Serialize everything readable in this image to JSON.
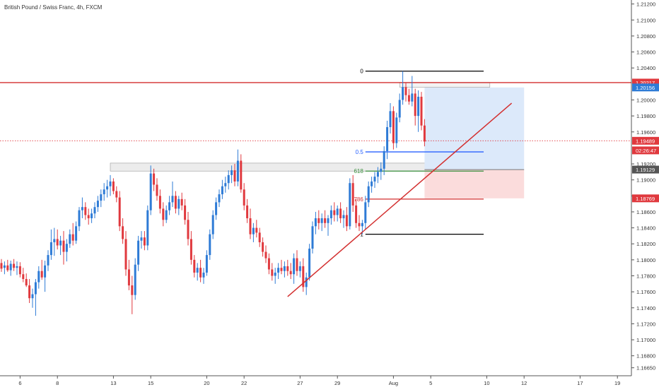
{
  "chart_data": {
    "type": "candlestick",
    "title": "British Pound / Swiss Franc, 4h, FXCM",
    "xlabel": "",
    "ylabel": "",
    "ylim": [
      1.1655,
      1.2125
    ],
    "y_ticks": [
      1.212,
      1.21,
      1.208,
      1.206,
      1.204,
      1.2,
      1.198,
      1.196,
      1.192,
      1.19,
      1.188,
      1.186,
      1.184,
      1.182,
      1.18,
      1.178,
      1.176,
      1.174,
      1.172,
      1.17,
      1.168,
      1.1665
    ],
    "y_tick_labels": [
      "1.21200",
      "1.21000",
      "1.20800",
      "1.20600",
      "1.20400",
      "1.20000",
      "1.19800",
      "1.19600",
      "1.19200",
      "1.19000",
      "1.18800",
      "1.18600",
      "1.18400",
      "1.18200",
      "1.18000",
      "1.17800",
      "1.17600",
      "1.17400",
      "1.17200",
      "1.17000",
      "1.16800",
      "1.16650"
    ],
    "x_ticks": [
      {
        "i": 6,
        "label": "6"
      },
      {
        "i": 18,
        "label": "8"
      },
      {
        "i": 36,
        "label": "13"
      },
      {
        "i": 48,
        "label": "15"
      },
      {
        "i": 66,
        "label": "20"
      },
      {
        "i": 78,
        "label": "22"
      },
      {
        "i": 96,
        "label": "27"
      },
      {
        "i": 108,
        "label": "29"
      },
      {
        "i": 126,
        "label": "Aug"
      },
      {
        "i": 138,
        "label": "5"
      },
      {
        "i": 156,
        "label": "10"
      },
      {
        "i": 168,
        "label": "12"
      },
      {
        "i": 186,
        "label": "17"
      },
      {
        "i": 198,
        "label": "19"
      }
    ],
    "grid": false,
    "legend": "none",
    "colors": {
      "up": "#2e7bd6",
      "down": "#e0393e",
      "resistance": "#d32f2f",
      "trendline": "#d32f2f",
      "fib_zero": "#000000",
      "fib_half": "#2962ff",
      "fib_618": "#388e3c",
      "fib_786": "#d32f2f",
      "fib_one": "#000000",
      "target_zone": "#dce9fa",
      "stop_zone": "#fbdcdc",
      "zone_box": "#ececec"
    },
    "price_labels": [
      {
        "value": 1.20217,
        "text": "1.20217",
        "color": "#e0393e"
      },
      {
        "value": 1.20156,
        "text": "1.20156",
        "color": "#2e7bd6"
      },
      {
        "value": 1.19489,
        "text": "1.19489",
        "color": "#e0393e"
      },
      {
        "value": 1.19369,
        "text": "02:26:47",
        "color": "#e0393e"
      },
      {
        "value": 1.19129,
        "text": "1.19129",
        "color": "#555555"
      },
      {
        "value": 1.18769,
        "text": "1.18769",
        "color": "#e0393e"
      }
    ],
    "fib_levels": [
      {
        "label": "0",
        "value": 1.2036,
        "color": "#000000"
      },
      {
        "label": "0.5",
        "value": 1.1935,
        "color": "#2962ff"
      },
      {
        "label": "618",
        "value": 1.1911,
        "color": "#388e3c"
      },
      {
        "label": "786",
        "value": 1.1876,
        "color": "#d32f2f"
      },
      {
        "label": "1",
        "value": 1.1832,
        "color": "#000000"
      }
    ],
    "fib_range": {
      "i0": 117,
      "i1": 155
    },
    "resistance_line": 1.20217,
    "current_price_line": 1.19489,
    "zone_box": {
      "i0": 35,
      "i1": 149,
      "top": 1.1921,
      "bottom": 1.1911
    },
    "top_box": {
      "i0": 128,
      "i1": 157,
      "top": 1.2022,
      "bottom": 1.2016
    },
    "position": {
      "i0": 136,
      "i1": 168,
      "entry": 1.19129,
      "target": 1.20156,
      "stop": 1.18769
    },
    "trendline": {
      "i0": 92,
      "v0": 1.1754,
      "i1": 164,
      "v1": 1.1996
    },
    "candles": [
      [
        0,
        1.1796,
        1.1801,
        1.1785,
        1.1789
      ],
      [
        1,
        1.179,
        1.1798,
        1.1782,
        1.1793
      ],
      [
        2,
        1.1793,
        1.18,
        1.1785,
        1.1787
      ],
      [
        3,
        1.1787,
        1.1799,
        1.178,
        1.1795
      ],
      [
        4,
        1.1795,
        1.1801,
        1.1786,
        1.179
      ],
      [
        5,
        1.179,
        1.1798,
        1.1781,
        1.1792
      ],
      [
        6,
        1.1792,
        1.1797,
        1.1778,
        1.1782
      ],
      [
        7,
        1.1782,
        1.179,
        1.1772,
        1.1776
      ],
      [
        8,
        1.1776,
        1.1783,
        1.1766,
        1.1768
      ],
      [
        9,
        1.1768,
        1.1776,
        1.1746,
        1.1752
      ],
      [
        10,
        1.1752,
        1.1764,
        1.174,
        1.1757
      ],
      [
        11,
        1.1757,
        1.1776,
        1.173,
        1.1772
      ],
      [
        12,
        1.1772,
        1.1792,
        1.1764,
        1.1786
      ],
      [
        13,
        1.1786,
        1.18,
        1.1775,
        1.1778
      ],
      [
        14,
        1.1778,
        1.1799,
        1.176,
        1.1793
      ],
      [
        15,
        1.1793,
        1.1812,
        1.1786,
        1.1806
      ],
      [
        16,
        1.1806,
        1.1838,
        1.18,
        1.1822
      ],
      [
        17,
        1.1822,
        1.184,
        1.1805,
        1.1826
      ],
      [
        18,
        1.1826,
        1.1838,
        1.1813,
        1.1818
      ],
      [
        19,
        1.1818,
        1.183,
        1.1806,
        1.1824
      ],
      [
        20,
        1.1824,
        1.1836,
        1.1794,
        1.181
      ],
      [
        21,
        1.181,
        1.1826,
        1.1798,
        1.182
      ],
      [
        22,
        1.182,
        1.1838,
        1.1815,
        1.1832
      ],
      [
        23,
        1.1832,
        1.1846,
        1.1818,
        1.1824
      ],
      [
        24,
        1.1824,
        1.1848,
        1.182,
        1.1842
      ],
      [
        25,
        1.1842,
        1.1866,
        1.1836,
        1.1862
      ],
      [
        26,
        1.1862,
        1.1878,
        1.1852,
        1.1866
      ],
      [
        27,
        1.1866,
        1.1872,
        1.185,
        1.1856
      ],
      [
        28,
        1.1856,
        1.1864,
        1.1844,
        1.1852
      ],
      [
        29,
        1.1852,
        1.1864,
        1.1846,
        1.1858
      ],
      [
        30,
        1.1858,
        1.1872,
        1.1852,
        1.1866
      ],
      [
        31,
        1.1866,
        1.188,
        1.186,
        1.1874
      ],
      [
        32,
        1.1874,
        1.1888,
        1.1866,
        1.1882
      ],
      [
        33,
        1.1882,
        1.1896,
        1.1874,
        1.1888
      ],
      [
        34,
        1.1888,
        1.19,
        1.1878,
        1.1892
      ],
      [
        35,
        1.1892,
        1.1906,
        1.188,
        1.1898
      ],
      [
        36,
        1.1898,
        1.1902,
        1.1882,
        1.1886
      ],
      [
        37,
        1.1886,
        1.1892,
        1.1872,
        1.1878
      ],
      [
        38,
        1.1878,
        1.1886,
        1.1836,
        1.1842
      ],
      [
        39,
        1.1842,
        1.1852,
        1.182,
        1.1826
      ],
      [
        40,
        1.1826,
        1.1836,
        1.178,
        1.1788
      ],
      [
        41,
        1.1788,
        1.18,
        1.1762,
        1.1768
      ],
      [
        42,
        1.1768,
        1.178,
        1.1732,
        1.1756
      ],
      [
        43,
        1.1756,
        1.1802,
        1.175,
        1.1794
      ],
      [
        44,
        1.1794,
        1.183,
        1.1786,
        1.1824
      ],
      [
        45,
        1.1824,
        1.1836,
        1.1814,
        1.1828
      ],
      [
        46,
        1.1828,
        1.1836,
        1.1812,
        1.1818
      ],
      [
        47,
        1.1818,
        1.1868,
        1.1812,
        1.1862
      ],
      [
        48,
        1.1862,
        1.1918,
        1.1856,
        1.1908
      ],
      [
        49,
        1.1908,
        1.1914,
        1.1886,
        1.1894
      ],
      [
        50,
        1.1894,
        1.1902,
        1.1874,
        1.188
      ],
      [
        51,
        1.188,
        1.1888,
        1.1858,
        1.1864
      ],
      [
        52,
        1.1864,
        1.1872,
        1.1842,
        1.185
      ],
      [
        53,
        1.185,
        1.1868,
        1.1846,
        1.1862
      ],
      [
        54,
        1.1862,
        1.188,
        1.1856,
        1.1872
      ],
      [
        55,
        1.1872,
        1.1898,
        1.1866,
        1.188
      ],
      [
        56,
        1.188,
        1.1886,
        1.1858,
        1.1864
      ],
      [
        57,
        1.1864,
        1.188,
        1.1856,
        1.1876
      ],
      [
        58,
        1.1876,
        1.1884,
        1.1862,
        1.1868
      ],
      [
        59,
        1.1868,
        1.1876,
        1.1844,
        1.185
      ],
      [
        60,
        1.185,
        1.186,
        1.1818,
        1.1826
      ],
      [
        61,
        1.1826,
        1.1836,
        1.1794,
        1.18
      ],
      [
        62,
        1.18,
        1.1806,
        1.1778,
        1.1784
      ],
      [
        63,
        1.1784,
        1.1796,
        1.1774,
        1.179
      ],
      [
        64,
        1.179,
        1.18,
        1.1772,
        1.1778
      ],
      [
        65,
        1.1778,
        1.179,
        1.177,
        1.1784
      ],
      [
        66,
        1.1784,
        1.1812,
        1.178,
        1.1806
      ],
      [
        67,
        1.1806,
        1.1838,
        1.18,
        1.1832
      ],
      [
        68,
        1.1832,
        1.1862,
        1.1826,
        1.1856
      ],
      [
        69,
        1.1856,
        1.1878,
        1.185,
        1.1872
      ],
      [
        70,
        1.1872,
        1.1888,
        1.1866,
        1.1882
      ],
      [
        71,
        1.1882,
        1.19,
        1.1876,
        1.1892
      ],
      [
        72,
        1.1892,
        1.1904,
        1.1884,
        1.1896
      ],
      [
        73,
        1.1896,
        1.1912,
        1.1888,
        1.1906
      ],
      [
        74,
        1.1906,
        1.1918,
        1.1896,
        1.1912
      ],
      [
        75,
        1.1912,
        1.192,
        1.1892,
        1.1898
      ],
      [
        76,
        1.1898,
        1.1938,
        1.1892,
        1.1924
      ],
      [
        77,
        1.1924,
        1.1932,
        1.1884,
        1.1888
      ],
      [
        78,
        1.1888,
        1.1896,
        1.1862,
        1.1868
      ],
      [
        79,
        1.1868,
        1.1876,
        1.1846,
        1.1852
      ],
      [
        80,
        1.1852,
        1.1864,
        1.1826,
        1.1832
      ],
      [
        81,
        1.1832,
        1.1846,
        1.1822,
        1.184
      ],
      [
        82,
        1.184,
        1.185,
        1.1828,
        1.1834
      ],
      [
        83,
        1.1834,
        1.184,
        1.1816,
        1.1822
      ],
      [
        84,
        1.1822,
        1.1828,
        1.1804,
        1.181
      ],
      [
        85,
        1.181,
        1.1818,
        1.1796,
        1.1802
      ],
      [
        86,
        1.1802,
        1.1808,
        1.1782,
        1.1788
      ],
      [
        87,
        1.1788,
        1.1796,
        1.1774,
        1.178
      ],
      [
        88,
        1.178,
        1.179,
        1.177,
        1.1784
      ],
      [
        89,
        1.1784,
        1.1796,
        1.1776,
        1.179
      ],
      [
        90,
        1.179,
        1.18,
        1.1782,
        1.1786
      ],
      [
        91,
        1.1786,
        1.1798,
        1.1778,
        1.1792
      ],
      [
        92,
        1.1792,
        1.18,
        1.178,
        1.1786
      ],
      [
        93,
        1.1786,
        1.1796,
        1.1776,
        1.1782
      ],
      [
        94,
        1.1782,
        1.1808,
        1.177,
        1.1802
      ],
      [
        95,
        1.1802,
        1.1812,
        1.178,
        1.1786
      ],
      [
        96,
        1.1786,
        1.1798,
        1.1778,
        1.1792
      ],
      [
        97,
        1.1792,
        1.1802,
        1.176,
        1.1766
      ],
      [
        98,
        1.1766,
        1.1784,
        1.1756,
        1.1778
      ],
      [
        99,
        1.1778,
        1.182,
        1.1774,
        1.1814
      ],
      [
        100,
        1.1814,
        1.1848,
        1.1808,
        1.1842
      ],
      [
        101,
        1.1842,
        1.186,
        1.1832,
        1.1852
      ],
      [
        102,
        1.1852,
        1.1862,
        1.1838,
        1.1846
      ],
      [
        103,
        1.1846,
        1.1858,
        1.1836,
        1.1852
      ],
      [
        104,
        1.1852,
        1.1862,
        1.184,
        1.1846
      ],
      [
        105,
        1.1846,
        1.1856,
        1.183,
        1.1852
      ],
      [
        106,
        1.1852,
        1.1868,
        1.1844,
        1.1862
      ],
      [
        107,
        1.1862,
        1.1872,
        1.1848,
        1.1856
      ],
      [
        108,
        1.1856,
        1.1868,
        1.1848,
        1.1864
      ],
      [
        109,
        1.1864,
        1.1872,
        1.1846,
        1.1852
      ],
      [
        110,
        1.1852,
        1.1862,
        1.184,
        1.1856
      ],
      [
        111,
        1.1856,
        1.1866,
        1.1836,
        1.1842
      ],
      [
        112,
        1.1842,
        1.1902,
        1.1838,
        1.1896
      ],
      [
        113,
        1.1896,
        1.1906,
        1.186,
        1.1868
      ],
      [
        114,
        1.1868,
        1.1876,
        1.184,
        1.1846
      ],
      [
        115,
        1.1846,
        1.1856,
        1.1836,
        1.1842
      ],
      [
        116,
        1.1842,
        1.185,
        1.1832,
        1.1846
      ],
      [
        117,
        1.1846,
        1.188,
        1.1838,
        1.1872
      ],
      [
        118,
        1.1872,
        1.1898,
        1.1866,
        1.1892
      ],
      [
        119,
        1.1892,
        1.1904,
        1.1884,
        1.1898
      ],
      [
        120,
        1.1898,
        1.191,
        1.189,
        1.1904
      ],
      [
        121,
        1.1904,
        1.1916,
        1.1896,
        1.191
      ],
      [
        122,
        1.191,
        1.1922,
        1.19,
        1.1914
      ],
      [
        123,
        1.1914,
        1.1942,
        1.1906,
        1.1936
      ],
      [
        124,
        1.1936,
        1.1974,
        1.1926,
        1.1966
      ],
      [
        125,
        1.1966,
        1.1996,
        1.1958,
        1.1986
      ],
      [
        126,
        1.1986,
        1.1992,
        1.1938,
        1.1946
      ],
      [
        127,
        1.1946,
        1.1984,
        1.194,
        1.1978
      ],
      [
        128,
        1.1978,
        1.2008,
        1.1972,
        1.2
      ],
      [
        129,
        1.2,
        1.2036,
        1.1994,
        1.2016
      ],
      [
        130,
        1.2016,
        1.2022,
        1.1998,
        1.2006
      ],
      [
        131,
        1.2006,
        1.2014,
        1.1994,
        1.1998
      ],
      [
        132,
        1.1998,
        1.203,
        1.1992,
        1.2008
      ],
      [
        133,
        1.2008,
        1.2014,
        1.1968,
        1.198
      ],
      [
        134,
        1.198,
        1.2012,
        1.196,
        1.2004
      ],
      [
        135,
        1.2004,
        1.201,
        1.1962,
        1.1968
      ],
      [
        136,
        1.1968,
        1.1976,
        1.1942,
        1.1948
      ]
    ]
  }
}
